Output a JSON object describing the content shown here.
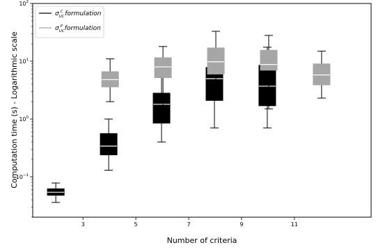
{
  "chart_data": {
    "type": "box",
    "title": "",
    "xlabel": "Number of criteria",
    "ylabel": "Computation time (s) - Logarithmic scale",
    "yscale": "log",
    "ylim": [
      0.02,
      100
    ],
    "y_ticks": [
      {
        "value": 0.1,
        "base": "10",
        "exp": "−1"
      },
      {
        "value": 1,
        "base": "10",
        "exp": "0"
      },
      {
        "value": 10,
        "base": "10",
        "exp": "1"
      },
      {
        "value": 100,
        "base": "10",
        "exp": "2"
      }
    ],
    "x_ticks": [
      "3",
      "5",
      "7",
      "9",
      "11"
    ],
    "xlim": [
      1.1,
      13.9
    ],
    "legend": {
      "position": "top-left",
      "entries": [
        {
          "sym": "σ",
          "sub": "UC",
          "sup": "C",
          "text": " formulation"
        },
        {
          "sym": "σ",
          "sub": "UC",
          "sup": "P",
          "text": " formulation"
        }
      ]
    },
    "series": [
      {
        "color": "#000000",
        "median_color": "#ffffff",
        "x": [
          3,
          5,
          7,
          9,
          11
        ],
        "boxes": [
          {
            "whislo": 0.036,
            "q1": 0.048,
            "med": 0.054,
            "q3": 0.062,
            "whishi": 0.078
          },
          {
            "whislo": 0.13,
            "q1": 0.24,
            "med": 0.34,
            "q3": 0.56,
            "whishi": 1.0
          },
          {
            "whislo": 0.4,
            "q1": 0.85,
            "med": 1.8,
            "q3": 2.8,
            "whishi": 5.5
          },
          {
            "whislo": 0.7,
            "q1": 2.1,
            "med": 5.0,
            "q3": 7.8,
            "whishi": 14.5
          },
          {
            "whislo": 0.7,
            "q1": 1.7,
            "med": 3.7,
            "q3": 8.5,
            "whishi": 17.5
          }
        ]
      },
      {
        "color": "#a6a6a6",
        "median_color": "#ffffff",
        "x": [
          3,
          5,
          7,
          9,
          11
        ],
        "boxes": [
          {
            "whislo": 2.0,
            "q1": 3.6,
            "med": 4.8,
            "q3": 6.6,
            "whishi": 11.0
          },
          {
            "whislo": 1.55,
            "q1": 5.2,
            "med": 8.0,
            "q3": 11.5,
            "whishi": 18.0
          },
          {
            "whislo": 3.2,
            "q1": 6.0,
            "med": 9.8,
            "q3": 17.0,
            "whishi": 33.0
          },
          {
            "whislo": 1.5,
            "q1": 7.0,
            "med": 8.8,
            "q3": 15.5,
            "whishi": 28.0
          },
          {
            "whislo": 2.3,
            "q1": 3.9,
            "med": 5.8,
            "q3": 9.0,
            "whishi": 15.0
          }
        ]
      }
    ]
  }
}
